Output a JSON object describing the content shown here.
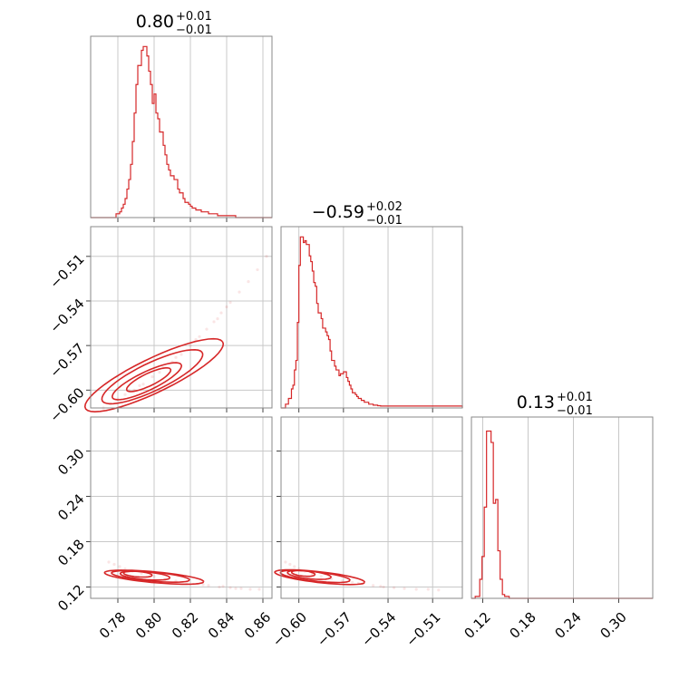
{
  "chart_data": {
    "type": "corner",
    "color": "#d62728",
    "grid": true,
    "parameters": [
      {
        "index": 0,
        "title": {
          "median": "0.80",
          "plus": "+0.01",
          "minus": "−0.01"
        },
        "range": [
          0.765,
          0.865
        ],
        "ticks": [
          0.78,
          0.8,
          0.82,
          0.84,
          0.86
        ],
        "tick_labels": [
          "0.78",
          "0.80",
          "0.82",
          "0.84",
          "0.86"
        ],
        "histogram": {
          "bin_edges": [
            0.765,
            0.779,
            0.78,
            0.781,
            0.782,
            0.783,
            0.784,
            0.785,
            0.786,
            0.787,
            0.788,
            0.789,
            0.79,
            0.791,
            0.792,
            0.793,
            0.794,
            0.795,
            0.796,
            0.797,
            0.798,
            0.799,
            0.8,
            0.801,
            0.802,
            0.803,
            0.804,
            0.805,
            0.806,
            0.807,
            0.808,
            0.809,
            0.81,
            0.811,
            0.812,
            0.813,
            0.814,
            0.815,
            0.816,
            0.817,
            0.818,
            0.819,
            0.82,
            0.821,
            0.822,
            0.823,
            0.824,
            0.826,
            0.83,
            0.835,
            0.84,
            0.845,
            0.85,
            0.856,
            0.865
          ],
          "counts": [
            0.0,
            0.02,
            0.02,
            0.03,
            0.05,
            0.07,
            0.1,
            0.15,
            0.2,
            0.28,
            0.4,
            0.55,
            0.7,
            0.8,
            0.8,
            0.88,
            0.9,
            0.9,
            0.85,
            0.77,
            0.7,
            0.6,
            0.65,
            0.55,
            0.52,
            0.45,
            0.45,
            0.38,
            0.33,
            0.28,
            0.25,
            0.22,
            0.22,
            0.2,
            0.2,
            0.15,
            0.13,
            0.13,
            0.1,
            0.08,
            0.08,
            0.07,
            0.06,
            0.05,
            0.05,
            0.04,
            0.04,
            0.03,
            0.02,
            0.01,
            0.01,
            0.0,
            0.0,
            0.0
          ]
        }
      },
      {
        "index": 1,
        "title": {
          "median": "−0.59",
          "plus": "+0.02",
          "minus": "−0.01"
        },
        "range": [
          -0.612,
          -0.49
        ],
        "ticks": [
          -0.6,
          -0.57,
          -0.54,
          -0.51
        ],
        "tick_labels": [
          "−0.60",
          "−0.57",
          "−0.54",
          "−0.51"
        ],
        "histogram": {
          "bin_edges": [
            -0.612,
            -0.609,
            -0.607,
            -0.606,
            -0.605,
            -0.604,
            -0.603,
            -0.602,
            -0.601,
            -0.6,
            -0.599,
            -0.598,
            -0.597,
            -0.596,
            -0.595,
            -0.594,
            -0.593,
            -0.592,
            -0.591,
            -0.59,
            -0.589,
            -0.588,
            -0.587,
            -0.586,
            -0.585,
            -0.584,
            -0.583,
            -0.582,
            -0.581,
            -0.58,
            -0.579,
            -0.578,
            -0.577,
            -0.576,
            -0.575,
            -0.574,
            -0.573,
            -0.572,
            -0.571,
            -0.57,
            -0.569,
            -0.568,
            -0.567,
            -0.566,
            -0.565,
            -0.564,
            -0.563,
            -0.562,
            -0.561,
            -0.56,
            -0.559,
            -0.558,
            -0.557,
            -0.556,
            -0.555,
            -0.554,
            -0.553,
            -0.552,
            -0.551,
            -0.55,
            -0.549,
            -0.548,
            -0.547,
            -0.546,
            -0.545,
            -0.544,
            -0.543,
            -0.542,
            -0.541,
            -0.54,
            -0.539,
            -0.538,
            -0.537,
            -0.536,
            -0.535,
            -0.534,
            -0.533,
            -0.532,
            -0.531,
            -0.53,
            -0.529,
            -0.528,
            -0.527,
            -0.526,
            -0.525,
            -0.524,
            -0.523,
            -0.522,
            -0.521,
            -0.52,
            -0.519,
            -0.518,
            -0.517,
            -0.516,
            -0.515,
            -0.514,
            -0.513,
            -0.512,
            -0.511,
            -0.51,
            -0.509,
            -0.508,
            -0.507,
            -0.506,
            -0.505,
            -0.504,
            -0.503,
            -0.502,
            -0.501,
            -0.5,
            -0.499,
            -0.498,
            -0.497,
            -0.496,
            -0.495,
            -0.494,
            -0.493,
            -0.492,
            -0.491,
            -0.49
          ],
          "counts": [
            0.0,
            0.02,
            0.05,
            0.05,
            0.1,
            0.12,
            0.2,
            0.25,
            0.45,
            0.75,
            0.9,
            0.9,
            0.87,
            0.88,
            0.86,
            0.86,
            0.8,
            0.77,
            0.72,
            0.66,
            0.64,
            0.55,
            0.5,
            0.5,
            0.47,
            0.42,
            0.42,
            0.4,
            0.38,
            0.36,
            0.3,
            0.25,
            0.25,
            0.22,
            0.2,
            0.2,
            0.17,
            0.18,
            0.18,
            0.19,
            0.19,
            0.16,
            0.14,
            0.12,
            0.1,
            0.08,
            0.08,
            0.07,
            0.06,
            0.05,
            0.05,
            0.04,
            0.04,
            0.03,
            0.03,
            0.03,
            0.02,
            0.02,
            0.02,
            0.015,
            0.015,
            0.015,
            0.012,
            0.012,
            0.01,
            0.01,
            0.01,
            0.01,
            0.01,
            0.01,
            0.01,
            0.01,
            0.01,
            0.01,
            0.01,
            0.01,
            0.01,
            0.01,
            0.01,
            0.01,
            0.01,
            0.01,
            0.01,
            0.01,
            0.01,
            0.01,
            0.01,
            0.01,
            0.01,
            0.01,
            0.01,
            0.01,
            0.01,
            0.01,
            0.01,
            0.01,
            0.01,
            0.01,
            0.01,
            0.01,
            0.01,
            0.01,
            0.01,
            0.01,
            0.01,
            0.01,
            0.01,
            0.01,
            0.01,
            0.01,
            0.01,
            0.01,
            0.01,
            0.01,
            0.01,
            0.01,
            0.01,
            0.01,
            0.01
          ]
        }
      },
      {
        "index": 2,
        "title": {
          "median": "0.13",
          "plus": "+0.01",
          "minus": "−0.01"
        },
        "range": [
          0.105,
          0.345
        ],
        "ticks": [
          0.12,
          0.18,
          0.24,
          0.3
        ],
        "tick_labels": [
          "0.12",
          "0.18",
          "0.24",
          "0.30"
        ],
        "histogram": {
          "bin_edges": [
            0.105,
            0.11,
            0.113,
            0.116,
            0.119,
            0.122,
            0.125,
            0.128,
            0.131,
            0.134,
            0.137,
            0.14,
            0.143,
            0.146,
            0.149,
            0.152,
            0.155,
            0.345
          ],
          "counts": [
            0.0,
            0.01,
            0.01,
            0.1,
            0.22,
            0.48,
            0.88,
            0.88,
            0.82,
            0.5,
            0.52,
            0.25,
            0.1,
            0.02,
            0.01,
            0.01,
            0.0
          ]
        }
      }
    ],
    "pairs": [
      {
        "x_param": 0,
        "y_param": 1,
        "contours": [
          {
            "center": [
              0.797,
              -0.593
            ],
            "angle_deg": 31,
            "a": 0.014,
            "b": 0.004
          },
          {
            "center": [
              0.796,
              -0.594
            ],
            "angle_deg": 31,
            "a": 0.022,
            "b": 0.006
          },
          {
            "center": [
              0.799,
              -0.591
            ],
            "angle_deg": 31,
            "a": 0.032,
            "b": 0.009
          },
          {
            "center": [
              0.8,
              -0.59
            ],
            "angle_deg": 31,
            "a": 0.044,
            "b": 0.011
          }
        ],
        "samples": [
          [
            0.772,
            -0.612
          ],
          [
            0.776,
            -0.609
          ],
          [
            0.78,
            -0.606
          ],
          [
            0.784,
            -0.603
          ],
          [
            0.789,
            -0.6
          ],
          [
            0.794,
            -0.596
          ],
          [
            0.799,
            -0.591
          ],
          [
            0.805,
            -0.585
          ],
          [
            0.81,
            -0.581
          ],
          [
            0.815,
            -0.576
          ],
          [
            0.82,
            -0.57
          ],
          [
            0.825,
            -0.564
          ],
          [
            0.829,
            -0.559
          ],
          [
            0.833,
            -0.554
          ],
          [
            0.837,
            -0.548
          ],
          [
            0.842,
            -0.541
          ],
          [
            0.847,
            -0.534
          ],
          [
            0.852,
            -0.527
          ],
          [
            0.857,
            -0.519
          ],
          [
            0.862,
            -0.51
          ],
          [
            0.786,
            -0.6
          ],
          [
            0.792,
            -0.597
          ],
          [
            0.803,
            -0.588
          ],
          [
            0.812,
            -0.578
          ],
          [
            0.823,
            -0.566
          ],
          [
            0.835,
            -0.552
          ],
          [
            0.84,
            -0.544
          ]
        ]
      },
      {
        "x_param": 0,
        "y_param": 2,
        "contours": [
          {
            "center": [
              0.791,
              0.137
            ],
            "angle_deg": -13,
            "a": 0.008,
            "b": 0.0035
          },
          {
            "center": [
              0.795,
              0.135
            ],
            "angle_deg": -13,
            "a": 0.014,
            "b": 0.005
          },
          {
            "center": [
              0.798,
              0.134
            ],
            "angle_deg": -13,
            "a": 0.022,
            "b": 0.006
          },
          {
            "center": [
              0.8,
              0.133
            ],
            "angle_deg": -13,
            "a": 0.028,
            "b": 0.007
          }
        ],
        "samples": [
          [
            0.775,
            0.153
          ],
          [
            0.778,
            0.15
          ],
          [
            0.781,
            0.147
          ],
          [
            0.784,
            0.144
          ],
          [
            0.788,
            0.141
          ],
          [
            0.793,
            0.138
          ],
          [
            0.8,
            0.134
          ],
          [
            0.806,
            0.13
          ],
          [
            0.812,
            0.128
          ],
          [
            0.818,
            0.126
          ],
          [
            0.824,
            0.124
          ],
          [
            0.83,
            0.122
          ],
          [
            0.836,
            0.12
          ],
          [
            0.842,
            0.119
          ],
          [
            0.848,
            0.118
          ],
          [
            0.853,
            0.117
          ],
          [
            0.858,
            0.117
          ],
          [
            0.838,
            0.121
          ],
          [
            0.845,
            0.118
          ],
          [
            0.827,
            0.123
          ]
        ]
      },
      {
        "x_param": 1,
        "y_param": 2,
        "contours": [
          {
            "center": [
              -0.597,
              0.138
            ],
            "angle_deg": -13,
            "a": 0.008,
            "b": 0.0035
          },
          {
            "center": [
              -0.593,
              0.136
            ],
            "angle_deg": -13,
            "a": 0.015,
            "b": 0.005
          },
          {
            "center": [
              -0.589,
              0.134
            ],
            "angle_deg": -13,
            "a": 0.024,
            "b": 0.006
          },
          {
            "center": [
              -0.586,
              0.133
            ],
            "angle_deg": -13,
            "a": 0.031,
            "b": 0.007
          }
        ],
        "samples": [
          [
            -0.609,
            0.153
          ],
          [
            -0.606,
            0.15
          ],
          [
            -0.603,
            0.147
          ],
          [
            -0.6,
            0.144
          ],
          [
            -0.596,
            0.141
          ],
          [
            -0.591,
            0.138
          ],
          [
            -0.585,
            0.134
          ],
          [
            -0.578,
            0.131
          ],
          [
            -0.571,
            0.128
          ],
          [
            -0.564,
            0.126
          ],
          [
            -0.557,
            0.124
          ],
          [
            -0.55,
            0.122
          ],
          [
            -0.543,
            0.12
          ],
          [
            -0.536,
            0.119
          ],
          [
            -0.529,
            0.118
          ],
          [
            -0.521,
            0.117
          ],
          [
            -0.513,
            0.117
          ],
          [
            -0.506,
            0.116
          ],
          [
            -0.545,
            0.121
          ],
          [
            -0.56,
            0.125
          ]
        ]
      }
    ]
  }
}
